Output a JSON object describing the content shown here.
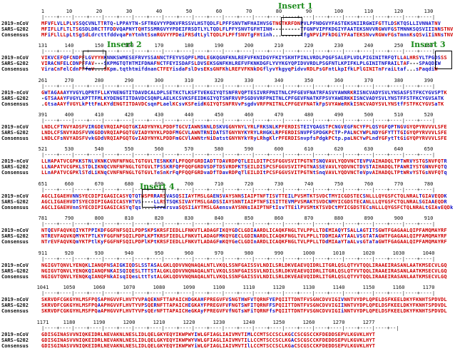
{
  "labels": {
    "seq1": "2019-nCoV",
    "seq2": "SARS-G202",
    "cons": "Consensus"
  },
  "colors": {
    "identical": "#d00000",
    "variant": "#1010c8",
    "insert_label": "#1a8a1a"
  },
  "blocks": [
    {
      "numbers": [
        "1",
        "10",
        "20",
        "30",
        "40",
        "50",
        "60",
        "70",
        "80",
        "90",
        "100",
        "110",
        "120",
        "130"
      ],
      "ruler": "|----+----|----+----|----+----|----+----|----+----|----+----|----+----|----+----|----+----|----+----|----+----|----+----|----+----|",
      "seq1": "MFVFLVLLPLVSSQCVNLTTRTQ-LPPAYTN-SFTRGVYYPDKVFRSSVLHSTQDLFLPFFSNVTWFHAIHVSGTNGTKRFDNPVLPFNDGVYFASTEKSNIIRGWIFGTTLDSKTQSLLIVNNATNV",
      "seq2": "MFIFLLFLTLTSGSDLDRCTTFDDVQAPNYTQHTSSMRGVYYPDEIFRSDTLYLTQDLFLPFYSNVTGFHTINH---------TFGNPVIPFKDGIYFAATEKSNVVRGWVFGSTMNNKSQSVIIINNSTNV",
      "cons": "MFiFLlLLpLtSgSdLdrcttfddvqaPnYtnhtSsmRGVYYPDeiFRSdtLylTQDLFLPFfSNVTgFHtinh.........tfgNPViPFkDGiYFAaTEKSNvvRGWvFGsTmnnKsQSviIiNNsTNV",
      "variant_ranges": []
    },
    {
      "numbers": [
        "131",
        "140",
        "150",
        "160",
        "170",
        "180",
        "190",
        "200",
        "210",
        "220",
        "230",
        "240",
        "250",
        "260"
      ],
      "ruler": "|----+----|----+----|----+----|----+----|----+----|----+----|----+----|----+----|----+----|----+----|----+----|----+----|----+----|",
      "seq1": "VIKVCEFQFCNDPFLGVYYHKNNKSWMESEFRVYSSANNCTFEYVSQPFLMDLEGKQGNFKNLREFVFKNIDGYFKIYSKHTPINLVRDLPQGFSALEPLVDLPIGINITRFQTLLALHRSYLTPGDSSS",
      "seq2": "VIRACNFELCDNPFFAV---SKPMGTQTHTMIFDNAFNCTFEYISDAFSLDVSEKSGNFKHLREFVFKNKDGFLYVYKGYQPIDVVRDLPSGFNTLKPIFKLPLGINITNFRAILTAF---SPAQDIW",
      "cons": "ViraCnFelCdnPFfaV...SKpm.tqthtmifdnanCTFEYisdaFslDvsEKsGNFKhLREFVFKNkDGflyvYkgyqPidvvRDLPsGFntLkpIfkLPlGINITnFraiLtaf...sPaqdiW",
      "variant_ranges": []
    },
    {
      "numbers": [
        "261",
        "270",
        "280",
        "290",
        "300",
        "310",
        "320",
        "330",
        "340",
        "350",
        "360",
        "370",
        "380",
        "390"
      ],
      "ruler": "|----+----|----+----|----+----|----+----|----+----|----+----|----+----|----+----|----+----|----+----|----+----|----+----|----+----|",
      "seq1": "GWTAGAAAYYVGYLQPRTFLLKYNENGTITDAVDCALDPLSETKCTLKSFTVEKGIYQTSNFRVQPTESIVRFPNITNLCPFGEVFNATRFASVYAWNRKRISNCVADYSVLYNSASFSTFKCYGVSPTK",
      "seq2": "-GTSAAAYFVGYLKPTTFMLKYDENGTITDAVDCSQNPLAELKCSVKSFEIDKGIYQTSNFRVVPSGDVVRFPNITNLCPFGEVFNATKFPSVYAWERKKISNCVADYSVLYNSTFFSTFKCYGVSATK",
      "cons": ".GtsaAAYfVGYLkPttFmLKYdENGTITDAVDCsqnPLaelKCsvKSFeidKGIYQTSNFRVvPsgdvVRFPNITNLCPFGEVFNATkFpSVYAWeRKkISNCVADYSVLYNStfFSTFKCYGVSaTK",
      "variant_ranges": []
    },
    {
      "numbers": [
        "391",
        "400",
        "410",
        "420",
        "430",
        "440",
        "450",
        "460",
        "470",
        "480",
        "490",
        "500",
        "510",
        "520"
      ],
      "ruler": "|----+----|----+----|----+----|----+----|----+----|----+----|----+----|----+----|----+----|----+----|----+----|----+----|----+----|",
      "seq1": "LNDLCFTNVYADSFVIRGDEVRQIAPGQTGKIADYNYKLPDDFTGCVIAWNSNNLDSKVGGNYNYLYRLFRKSNLKPFERDISTEIYQAGSTPCNGVEGFNCYFPLQSYGFQPTNGVGYQPYRVVVLSFE",
      "seq2": "LNDLCFSNVYADSFVVKGDDVRQIAPGQTGVIADYNYKLPDDFMGCVLAWNTRNIDATSTGNYNYKYRYLRHGKLRPFERDISNVPFSPDGKPCTP-PALNCYWPLNDYGFYTTTGIGYQPYRVVVLSFE",
      "cons": "LNDLCFsNVYADSFVvkGDdVRQIAPGQTGvIADYNYKLPDDFmGCVlAWNtrNiDatstGNYNYkYRyLRhgKlrPFERDISnvpfsPdgkPCtp.paLNCYwPLndYGFytTtGiGYQPYRVVVLSFE",
      "variant_ranges": []
    },
    {
      "numbers": [
        "521",
        "530",
        "540",
        "550",
        "560",
        "570",
        "580",
        "590",
        "600",
        "610",
        "620",
        "630",
        "640",
        "650"
      ],
      "ruler": "|----+----|----+----|----+----|----+----|----+----|----+----|----+----|----+----|----+----|----+----|----+----|----+----|----+----|",
      "seq1": "LLHAPATVCGPKKSTNLVKNKCVNFNFNGLTGTGVLTESNKKFLPFQQFGRDIADTTDAVRDPQTLEILDITPCSFGGVSVITPGTNTSNQVAVLYQDVNCTEVPVAIHADQLTPTWRVYSTGSNVFQTR",
      "seq2": "LLNAPATVCGPKLSTDLIKNQCVNFNFNGLTGTGVLTPSSKRFQPFQQFGRDVSDFTDSVRDPKTSEILDISPCSFGGVSVITPGTNASSEVAVLYQDVNCTDVSTAIHADQLTPAWRIYSTGNNVFQTQ",
      "cons": "LLnAPATVCGPKlSTdLiKNqCVNFNFNGLTGTGVLTeSnKrFqPFQQFGRDvaDfTDavRDPqTlEILDItPCSFGGVSVITPGTNtSnqVAVLYQDVNCTeVpvAIHADQLTPtWRvYSTGsNVFQTq",
      "variant_ranges": []
    },
    {
      "numbers": [
        "651",
        "660",
        "670",
        "680",
        "690",
        "700",
        "710",
        "720",
        "730",
        "740",
        "750",
        "760",
        "770",
        "780"
      ],
      "ruler": "|----+----|----+----|----+----|----+----|----+----|----+----|----+----|----+----|----+----|----+----|----+----|----+----|----+----|",
      "seq1": "AGCLIGAEHVNNSYECDIPIGAGICASYQTQTNSPRRARSVASQSIIAYTMSLGAENSVAYSNNSIAIPTNFTISVTTEILPVSMTKTSVDCTMYICGDSTECSNLLLQYGSFCTQLNRALTGIAVEQDK",
      "seq2": "AGCLIGAEHVDTSYECDIPIGAGICASYHTVS----LLRSTSQKSIVAYTMSLGADSSIAYSNNTIAIPTNFSISITTEVMPVSMAKTSVDCNMYICGDSTECANLLLQYGSFCTQLNRALSGIAAEQDR",
      "cons": "AGCLIGAEHVnnSYECDIPIGAGICASYqTqs....lrrarsvaSQSIiAYTMSLGAensvAYSNNsIAIPTNFtIsvTTEilPVSMtKTSVDCtMYICGDSTECsNLLLQYGSFCTQLNRALtGIAvEQDk",
      "variant_ranges": []
    },
    {
      "numbers": [
        "781",
        "790",
        "800",
        "810",
        "820",
        "830",
        "840",
        "850",
        "860",
        "870",
        "880",
        "890",
        "900",
        "910"
      ],
      "ruler": "|----+----|----+----|----+----|----+----|----+----|----+----|----+----|----+----|----+----|----+----|----+----|----+----|----+----|",
      "seq1": "NTQEVFAQVKQIYKTPPIKDFGGFNFSQILPDPSKPSKRSFIEDLLFNKVTLADAGFIKQYGDCLGDIAARDLICAQKFNGLTVLPPLLTDEMIAQYTSALLAGTITSGWTFGAGAALQIPFAMQMAYRF",
      "seq2": "NTREVFAQVKQMYKTPTLKYFGGFNFSQILPDPLKPTKRSFIEDLLFNKVTLADAGFMKQYGECLGDINARDLICAQKFNGLTVLPPLLTDDMIAAYTAALVSGTATAGWTFGAGAALQIPFAMQMAYRF",
      "cons": "NTrEVFAQVKQmYKTPtlKyFGGFNFSQILPDPlKPtKRSFIEDLLFNKVTLADAGFmKQYGeCLGDInARDLICAQKFNGLTVLPPLLTDdMIAaYTaALvsGTaTaGWTFGAGAALQIPFAMQMAYRF",
      "variant_ranges": []
    },
    {
      "numbers": [
        "911",
        "920",
        "930",
        "940",
        "950",
        "960",
        "970",
        "980",
        "990",
        "1000",
        "1010",
        "1020",
        "1030",
        "1040"
      ],
      "ruler": "|----+----|----+----|----+----|----+----|----+----|----+----|----+----|----+----|----+----|----+----|----+----|----+----|----+----|",
      "seq1": "NGIGVTQNVLYENQKLIANQFNSAIGKIQDSLSSTASALGKLQDVVNQNAQALNTLVKQLSSNFGAISSVLNDILSRLDKVEAEVQIDRLITGRLQSLQTYVTQQLIRAAEIRASANLAATKMSECVLGQ",
      "seq2": "NGIGVTQNVLYENQKQIANQFNKAISQIQESLTTTSTALGKLQDVVNQNAQALNTLVKQLSSNFGAISSVLNDILSRLDKVEAEVQIDRLITGRLQSLQTYVTQQLIRAAEIRASANLAATKMSECVLGQ",
      "cons": "NGIGVTQNVLYENQKqIANQFNkAIsqIQesLttTstALGKLQDVVNQNAQALNTLVKQLSSNFGAISSVLNDILSRLDKVEAEVQIDRLITGRLQSLQTYVTQQLIRAAEIRASANLAATKMSECVLGQ",
      "variant_ranges": []
    },
    {
      "numbers": [
        "1041",
        "1050",
        "1060",
        "1070",
        "1080",
        "1090",
        "1100",
        "1110",
        "1120",
        "1130",
        "1140",
        "1150",
        "1160",
        "1170"
      ],
      "ruler": "|----+----|----+----|----+----|----+----|----+----|----+----|----+----|----+----|----+----|----+----|----+----|----+----|----+----|",
      "seq1": "SKRVDFCGKGYHLMSFPQSAPHGVVFLHVTYVPAQEKNFTTAPAICHDGKAHFPREGVFVSNGTHWFVTQRNFYEPQIITTDNTFVSGNCDVVIGIVNNTVYDPLQPELDSFKEELDKYFKNHTSPDVDL",
      "seq2": "SKRVDFCGKGYHLMSFPQAAPHGVVFLHVTYVPSQERNFTTAPAICHEGKAYFPREGVFVFNGTSWFITQRNFFSPQIITTDNTFVSGNCDVVIGIINNTVYDPLQPELDSFKEELDKYFKNHTSPDVDL",
      "cons": "SKRVDFCGKGYHLMSFPQaAPHGVVFLHVTYVPsQErNFTTAPAICHeGKAyFPREGVFVfNGTsWFiTQRNFfsPQIITTDNTFVSGNCDVVIGIiNNTVYDPLQPELDSFKEELDKYFKNHTSPDVDL",
      "variant_ranges": []
    },
    {
      "numbers": [
        "1171",
        "1180",
        "1190",
        "1200",
        "1210",
        "1220",
        "1230",
        "1240",
        "1250",
        "1260",
        "1270",
        "1277"
      ],
      "ruler": "|----+----|----+----|----+----|----+----|----+----|----+----|----+----|----+----|----+----|----+----|----+----|----+--|",
      "seq1": "GDISGINASVVNIQKEIDRLNEVAKNLNESLIDLQELGKYEQYIKWPWYIWLGFIAGLIAIVMVTIMLCCMTSCCSCLKGCCSCGSCCKFDEDDSEPVLKGVKLHYT",
      "seq2": "GDISGINASVVNIQKEIDRLNEVAKNLNESLIDLQELGKYEQYIKWPWYVWLGFIAGLIAIVMVTILLCCMTSCCSCLKGACSCGSCCKFDEDDSEPVLKGVKLHYT",
      "cons": "GDISGINASVVNIQKEIDRLNEVAKNLNESLIDLQELGKYEQYIKWPWYiWLGFIAGLIAIVMVTIlLCCMTSCCSCLKGaCSCGSCCKFDEDDSEPVLKGVKLHYT",
      "variant_ranges": []
    }
  ],
  "inserts": [
    {
      "label": "Insert 1"
    },
    {
      "label": "Insert 2"
    },
    {
      "label": "Insert 3"
    },
    {
      "label": "Insert 4"
    }
  ]
}
